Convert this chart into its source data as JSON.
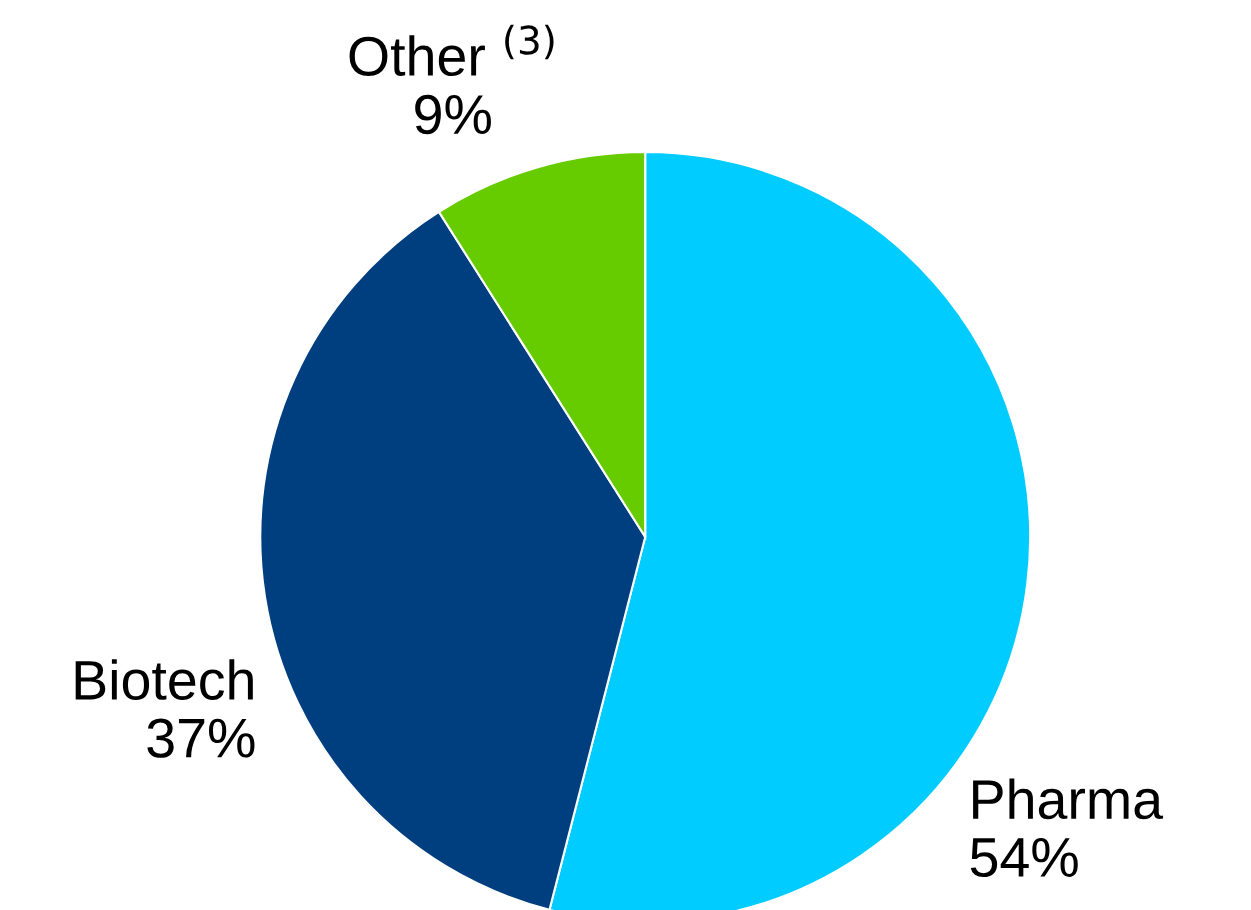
{
  "chart_data": {
    "type": "pie",
    "categories": [
      "Pharma",
      "Biotech",
      "Other $^{(3)}$"
    ],
    "values": [
      54,
      37,
      9
    ],
    "value_labels": [
      "54%",
      "37%",
      "9%"
    ],
    "colors": [
      "#00ccff",
      "#003f7f",
      "#66cc00"
    ]
  }
}
